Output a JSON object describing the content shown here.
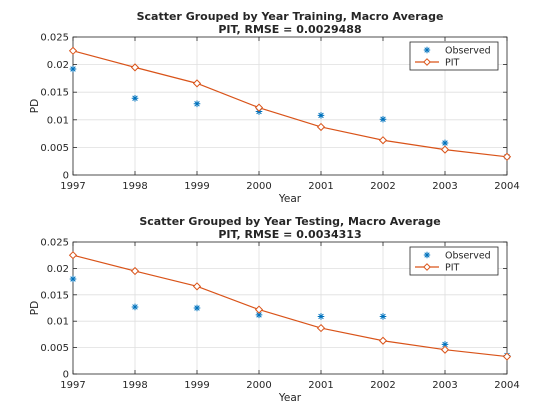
{
  "chart_data": [
    {
      "type": "scatter",
      "title": "Scatter Grouped by Year Training, Macro Average",
      "subtitle": "PIT, RMSE = 0.0029488",
      "xlabel": "Year",
      "ylabel": "PD",
      "xlim": [
        1997,
        2004
      ],
      "ylim": [
        0,
        0.025
      ],
      "xticks": [
        "1997",
        "1998",
        "1999",
        "2000",
        "2001",
        "2002",
        "2003",
        "2004"
      ],
      "yticks": [
        "0",
        "0.005",
        "0.01",
        "0.015",
        "0.02",
        "0.025"
      ],
      "grid": true,
      "legend_position": "top-right",
      "x": [
        1997,
        1998,
        1999,
        2000,
        2001,
        2002,
        2003,
        2004
      ],
      "series": [
        {
          "name": "Observed",
          "marker": "asterisk",
          "color": "#0072BD",
          "values": [
            0.0192,
            0.0139,
            0.0129,
            0.0115,
            0.0108,
            0.0101,
            0.0058,
            0.0033
          ]
        },
        {
          "name": "PIT",
          "marker": "diamond-line",
          "color": "#D95319",
          "values": [
            0.0225,
            0.0195,
            0.0166,
            0.0122,
            0.0087,
            0.0063,
            0.0046,
            0.0033
          ]
        }
      ]
    },
    {
      "type": "scatter",
      "title": "Scatter Grouped by Year Testing, Macro Average",
      "subtitle": "PIT, RMSE = 0.0034313",
      "xlabel": "Year",
      "ylabel": "PD",
      "xlim": [
        1997,
        2004
      ],
      "ylim": [
        0,
        0.025
      ],
      "xticks": [
        "1997",
        "1998",
        "1999",
        "2000",
        "2001",
        "2002",
        "2003",
        "2004"
      ],
      "yticks": [
        "0",
        "0.005",
        "0.01",
        "0.015",
        "0.02",
        "0.025"
      ],
      "grid": true,
      "legend_position": "top-right",
      "x": [
        1997,
        1998,
        1999,
        2000,
        2001,
        2002,
        2003,
        2004
      ],
      "series": [
        {
          "name": "Observed",
          "marker": "asterisk",
          "color": "#0072BD",
          "values": [
            0.018,
            0.0127,
            0.0125,
            0.0112,
            0.0109,
            0.0109,
            0.0056,
            0.0035
          ]
        },
        {
          "name": "PIT",
          "marker": "diamond-line",
          "color": "#D95319",
          "values": [
            0.0225,
            0.0195,
            0.0166,
            0.0122,
            0.0087,
            0.0063,
            0.0046,
            0.0033
          ]
        }
      ]
    }
  ]
}
